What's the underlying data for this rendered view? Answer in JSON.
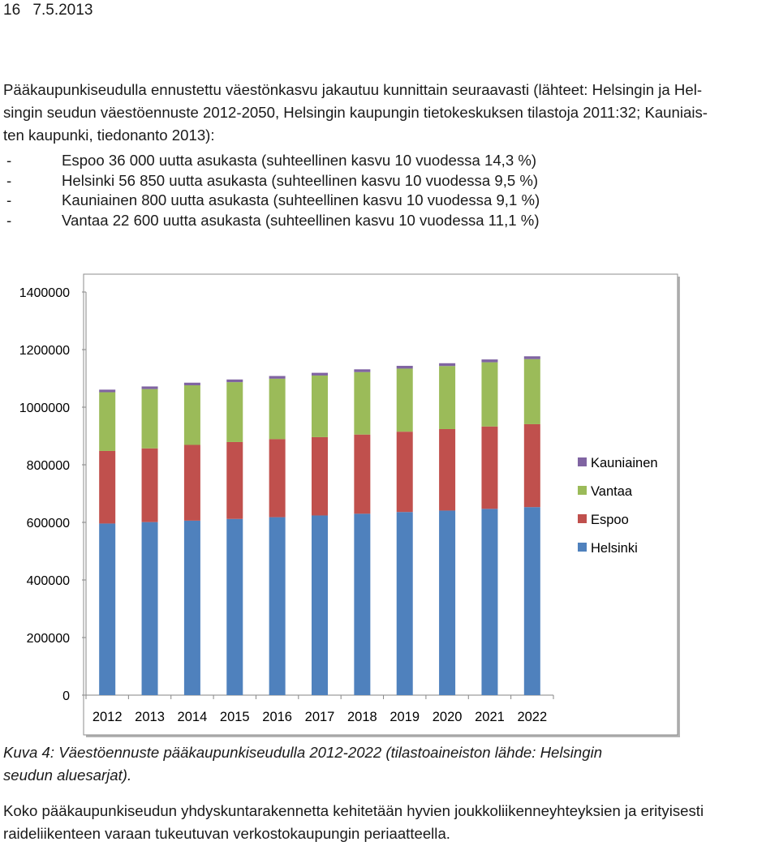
{
  "header": {
    "page_number": "16",
    "date": "7.5.2013"
  },
  "intro_lines": [
    "Pääkaupunkiseudulla ennustettu väestönkasvu jakautuu kunnittain seuraavasti (lähteet: Helsingin ja Hel-",
    "singin seudun väestöennuste 2012-2050, Helsingin kaupungin tietokeskuksen tilastoja 2011:32; Kauniais-",
    "ten kaupunki, tiedonanto 2013):"
  ],
  "bullets": [
    {
      "dash": "-",
      "text": "Espoo 36 000 uutta asukasta (suhteellinen kasvu 10 vuodessa 14,3 %)"
    },
    {
      "dash": "-",
      "text": "Helsinki 56 850 uutta asukasta (suhteellinen kasvu 10 vuodessa 9,5 %)"
    },
    {
      "dash": "-",
      "text": "Kauniainen 800 uutta asukasta (suhteellinen kasvu 10 vuodessa 9,1 %)"
    },
    {
      "dash": "-",
      "text": "Vantaa 22 600 uutta asukasta (suhteellinen kasvu 10 vuodessa 11,1 %)"
    }
  ],
  "chart_data": {
    "type": "bar",
    "stacked": true,
    "title": "",
    "xlabel": "",
    "ylabel": "",
    "categories": [
      "2012",
      "2013",
      "2014",
      "2015",
      "2016",
      "2017",
      "2018",
      "2019",
      "2020",
      "2021",
      "2022"
    ],
    "series": [
      {
        "name": "Helsinki",
        "color": "#4f81bd",
        "values": [
          596000,
          601000,
          606000,
          612000,
          618000,
          624000,
          630000,
          636000,
          641000,
          647000,
          653000
        ]
      },
      {
        "name": "Espoo",
        "color": "#c0504d",
        "values": [
          252000,
          256000,
          263000,
          267000,
          271000,
          272000,
          275000,
          279000,
          283000,
          286000,
          288000
        ]
      },
      {
        "name": "Vantaa",
        "color": "#9bbb59",
        "values": [
          204000,
          206000,
          207000,
          208000,
          210000,
          214000,
          217000,
          219000,
          219000,
          223000,
          226000
        ]
      },
      {
        "name": "Kauniainen",
        "color": "#8064a2",
        "values": [
          8900,
          9000,
          9100,
          9200,
          9300,
          9400,
          9500,
          9600,
          9700,
          9800,
          9700
        ]
      }
    ],
    "ylim": [
      0,
      1400000
    ],
    "yticks": [
      0,
      200000,
      400000,
      600000,
      800000,
      1000000,
      1200000,
      1400000
    ],
    "ytick_labels": [
      "0",
      "200000",
      "400000",
      "600000",
      "800000",
      "1000000",
      "1200000",
      "1400000"
    ],
    "grid": false,
    "legend": "right",
    "legend_order": [
      "Kauniainen",
      "Vantaa",
      "Espoo",
      "Helsinki"
    ]
  },
  "caption_lines": [
    "Kuva 4: Väestöennuste pääkaupunkiseudulla 2012-2022 (tilastoaineiston lähde: Helsingin",
    "seudun aluesarjat)."
  ],
  "footer_lines": [
    "Koko pääkaupunkiseudun yhdyskuntarakennetta kehitetään hyvien joukkoliikenneyhteyksien ja erityisesti",
    "raideliikenteen varaan tukeutuvan verkostokaupungin periaatteella."
  ]
}
